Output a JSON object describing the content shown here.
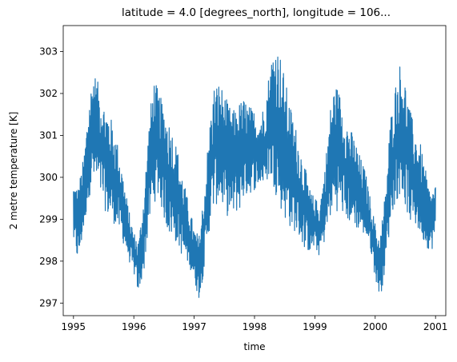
{
  "chart_data": {
    "type": "line",
    "title": "latitude = 4.0 [degrees_north], longitude = 106...",
    "xlabel": "time",
    "ylabel": "2 metre temperature [K]",
    "xlim": [
      1994.83,
      2001.17
    ],
    "ylim": [
      296.7,
      303.62
    ],
    "x_ticks": [
      1995,
      1996,
      1997,
      1998,
      1999,
      2000,
      2001
    ],
    "x_tick_labels": [
      "1995",
      "1996",
      "1997",
      "1998",
      "1999",
      "2000",
      "2001"
    ],
    "y_ticks": [
      297,
      298,
      299,
      300,
      301,
      302,
      303
    ],
    "y_tick_labels": [
      "297",
      "298",
      "299",
      "300",
      "301",
      "302",
      "303"
    ],
    "grid": false,
    "series": [
      {
        "color": "#1f77b4",
        "x": [
          1995.0,
          1995.08,
          1995.17,
          1995.25,
          1995.33,
          1995.42,
          1995.5,
          1995.58,
          1995.67,
          1995.75,
          1995.83,
          1995.92,
          1996.0,
          1996.08,
          1996.17,
          1996.25,
          1996.33,
          1996.42,
          1996.5,
          1996.58,
          1996.67,
          1996.75,
          1996.83,
          1996.92,
          1997.0,
          1997.08,
          1997.17,
          1997.25,
          1997.33,
          1997.42,
          1997.5,
          1997.58,
          1997.67,
          1997.75,
          1997.83,
          1997.92,
          1998.0,
          1998.08,
          1998.17,
          1998.25,
          1998.33,
          1998.42,
          1998.5,
          1998.58,
          1998.67,
          1998.75,
          1998.83,
          1998.92,
          1999.0,
          1999.08,
          1999.17,
          1999.25,
          1999.33,
          1999.42,
          1999.5,
          1999.58,
          1999.67,
          1999.75,
          1999.83,
          1999.92,
          2000.0,
          2000.08,
          2000.17,
          2000.25,
          2000.33,
          2000.42,
          2000.5,
          2000.58,
          2000.67,
          2000.75,
          2000.83,
          2000.92,
          2001.0
        ],
        "min": [
          298.4,
          297.9,
          298.7,
          299.5,
          299.8,
          299.6,
          299.3,
          299.0,
          298.9,
          298.7,
          298.4,
          298.0,
          297.7,
          297.2,
          297.8,
          298.8,
          299.4,
          299.5,
          299.0,
          298.6,
          298.5,
          298.3,
          298.0,
          297.9,
          297.5,
          297.1,
          297.8,
          298.7,
          299.3,
          299.4,
          299.2,
          299.0,
          299.1,
          299.2,
          299.5,
          299.6,
          299.7,
          299.8,
          299.8,
          300.0,
          299.7,
          299.3,
          299.0,
          298.8,
          298.7,
          298.5,
          298.3,
          298.2,
          298.3,
          298.1,
          298.5,
          299.0,
          299.2,
          299.2,
          299.0,
          298.9,
          298.8,
          298.7,
          298.6,
          298.3,
          297.6,
          297.1,
          297.8,
          298.9,
          299.4,
          299.6,
          299.3,
          298.9,
          298.8,
          298.6,
          298.4,
          298.2,
          298.5
        ],
        "max": [
          299.9,
          299.8,
          300.5,
          301.8,
          302.6,
          302.2,
          301.8,
          301.6,
          301.2,
          300.7,
          300.0,
          299.2,
          298.7,
          298.5,
          299.7,
          301.3,
          302.4,
          302.0,
          301.7,
          301.4,
          301.0,
          300.5,
          299.9,
          299.3,
          298.8,
          298.6,
          299.8,
          301.2,
          302.2,
          302.3,
          302.0,
          301.7,
          301.6,
          301.8,
          301.9,
          301.7,
          301.6,
          301.4,
          301.8,
          302.6,
          303.3,
          303.0,
          302.4,
          301.8,
          301.3,
          300.8,
          300.3,
          299.7,
          299.5,
          299.4,
          300.3,
          301.6,
          302.3,
          302.0,
          301.5,
          301.2,
          300.9,
          300.5,
          300.2,
          299.5,
          298.9,
          298.6,
          299.7,
          301.4,
          302.2,
          302.8,
          302.3,
          301.6,
          301.1,
          300.8,
          300.2,
          299.6,
          299.9
        ]
      }
    ]
  }
}
